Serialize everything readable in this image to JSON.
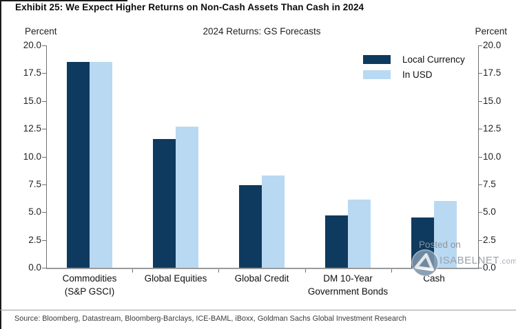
{
  "exhibit_title": "Exhibit 25: We Expect Higher Returns on Non-Cash Assets Than Cash in 2024",
  "axis_left_label": "Percent",
  "axis_right_label": "Percent",
  "source": "Source: Bloomberg, Datastream, Bloomberg-Barclays, ICE-BAML, iBoxx, Goldman Sachs Global Investment Research",
  "watermark": {
    "line1": "Posted on",
    "line2": "ISABELNET",
    "suffix": ".com"
  },
  "colors": {
    "local_currency": "#0E3A5F",
    "in_usd": "#B9D9F2",
    "axis": "#6e6e6e"
  },
  "chart_data": {
    "type": "bar",
    "title": "2024 Returns: GS Forecasts",
    "ylabel": "Percent",
    "ylim": [
      0,
      20
    ],
    "yticks": [
      0.0,
      2.5,
      5.0,
      7.5,
      10.0,
      12.5,
      15.0,
      17.5,
      20.0
    ],
    "grid": false,
    "legend_position": "top-right",
    "categories": [
      "Commodities\n(S&P GSCI)",
      "Global Equities",
      "Global Credit",
      "DM 10-Year\nGovernment Bonds",
      "Cash"
    ],
    "series": [
      {
        "name": "Local Currency",
        "color": "#0E3A5F",
        "values": [
          18.5,
          11.6,
          7.4,
          4.7,
          4.5
        ]
      },
      {
        "name": "In USD",
        "color": "#B9D9F2",
        "values": [
          18.5,
          12.7,
          8.3,
          6.1,
          6.0
        ]
      }
    ]
  }
}
